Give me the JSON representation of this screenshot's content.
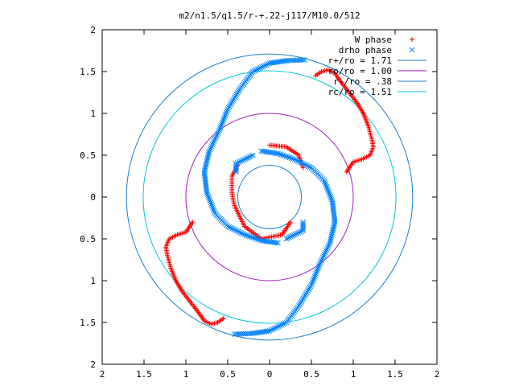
{
  "chart_data": {
    "type": "scatter",
    "title": "m2/n1.5/q1.5/r-+.22-j117/M10.0/512",
    "xlim": [
      -2,
      2
    ],
    "ylim": [
      -2,
      2
    ],
    "x_tick_values": [
      -2,
      -1.5,
      -1,
      -0.5,
      0,
      0.5,
      1,
      1.5,
      2
    ],
    "x_tick_labels": [
      "2",
      "1.5",
      "1",
      "0.5",
      "0",
      "0.5",
      "1",
      "1.5",
      "2"
    ],
    "y_tick_values": [
      2,
      1.5,
      1,
      0.5,
      0,
      -0.5,
      -1,
      -1.5,
      -2
    ],
    "y_tick_labels": [
      "2",
      "1.5",
      "1",
      "0.5",
      "0",
      "0.5",
      "1",
      "1.5",
      "2"
    ],
    "grid": false,
    "legend_position": "top-right",
    "series": [
      {
        "name": "W phase",
        "marker": "plus",
        "color": "#ff0000",
        "arms": [
          [
            [
              0.55,
              1.45
            ],
            [
              0.62,
              1.5
            ],
            [
              0.7,
              1.52
            ],
            [
              0.78,
              1.48
            ],
            [
              0.85,
              1.38
            ],
            [
              0.95,
              1.25
            ],
            [
              1.05,
              1.12
            ],
            [
              1.12,
              1.0
            ],
            [
              1.18,
              0.85
            ],
            [
              1.22,
              0.7
            ],
            [
              1.24,
              0.6
            ],
            [
              1.2,
              0.5
            ],
            [
              1.1,
              0.45
            ],
            [
              1.0,
              0.42
            ],
            [
              0.92,
              0.3
            ]
          ],
          [
            [
              -0.55,
              -1.45
            ],
            [
              -0.62,
              -1.5
            ],
            [
              -0.7,
              -1.52
            ],
            [
              -0.78,
              -1.48
            ],
            [
              -0.85,
              -1.38
            ],
            [
              -0.95,
              -1.25
            ],
            [
              -1.05,
              -1.12
            ],
            [
              -1.12,
              -1.0
            ],
            [
              -1.18,
              -0.85
            ],
            [
              -1.22,
              -0.7
            ],
            [
              -1.24,
              -0.6
            ],
            [
              -1.2,
              -0.5
            ],
            [
              -1.1,
              -0.45
            ],
            [
              -1.0,
              -0.42
            ],
            [
              -0.92,
              -0.3
            ]
          ],
          [
            [
              0.0,
              0.62
            ],
            [
              0.2,
              0.6
            ],
            [
              0.35,
              0.5
            ],
            [
              0.4,
              0.35
            ]
          ],
          [
            [
              -0.38,
              0.38
            ],
            [
              -0.45,
              0.25
            ],
            [
              -0.45,
              0.05
            ],
            [
              -0.42,
              -0.1
            ],
            [
              -0.3,
              -0.35
            ],
            [
              -0.1,
              -0.5
            ],
            [
              0.15,
              -0.45
            ],
            [
              0.25,
              -0.3
            ]
          ]
        ]
      },
      {
        "name": "drho phase",
        "marker": "cross",
        "color": "#0080ff",
        "arms": [
          [
            [
              0.42,
              1.64
            ],
            [
              0.2,
              1.63
            ],
            [
              0.0,
              1.6
            ],
            [
              -0.2,
              1.5
            ],
            [
              -0.35,
              1.3
            ],
            [
              -0.5,
              1.05
            ],
            [
              -0.6,
              0.8
            ],
            [
              -0.72,
              0.55
            ],
            [
              -0.78,
              0.3
            ],
            [
              -0.75,
              0.05
            ],
            [
              -0.65,
              -0.2
            ],
            [
              -0.5,
              -0.35
            ],
            [
              -0.3,
              -0.45
            ],
            [
              -0.1,
              -0.52
            ],
            [
              0.1,
              -0.55
            ]
          ],
          [
            [
              -0.42,
              -1.64
            ],
            [
              -0.2,
              -1.63
            ],
            [
              0.0,
              -1.6
            ],
            [
              0.2,
              -1.5
            ],
            [
              0.35,
              -1.3
            ],
            [
              0.5,
              -1.05
            ],
            [
              0.6,
              -0.8
            ],
            [
              0.72,
              -0.55
            ],
            [
              0.78,
              -0.3
            ],
            [
              0.75,
              -0.05
            ],
            [
              0.65,
              0.2
            ],
            [
              0.5,
              0.35
            ],
            [
              0.3,
              0.45
            ],
            [
              0.1,
              0.52
            ],
            [
              -0.1,
              0.55
            ]
          ],
          [
            [
              -0.2,
              0.5
            ],
            [
              -0.4,
              0.4
            ],
            [
              -0.4,
              0.3
            ]
          ],
          [
            [
              0.2,
              -0.5
            ],
            [
              0.4,
              -0.4
            ],
            [
              0.4,
              -0.3
            ]
          ]
        ]
      },
      {
        "name": "r+/ro = 1.71",
        "type": "circle",
        "radius": 1.71,
        "color": "#1a7fd4"
      },
      {
        "name": "ro/ro = 1.00",
        "type": "circle",
        "radius": 1.0,
        "color": "#a020c0"
      },
      {
        "name": "r-/ro = .38",
        "type": "circle",
        "radius": 0.38,
        "color": "#1a7fd4"
      },
      {
        "name": "rc/ro = 1.51",
        "type": "circle",
        "radius": 1.51,
        "color": "#00c8d8"
      }
    ]
  }
}
